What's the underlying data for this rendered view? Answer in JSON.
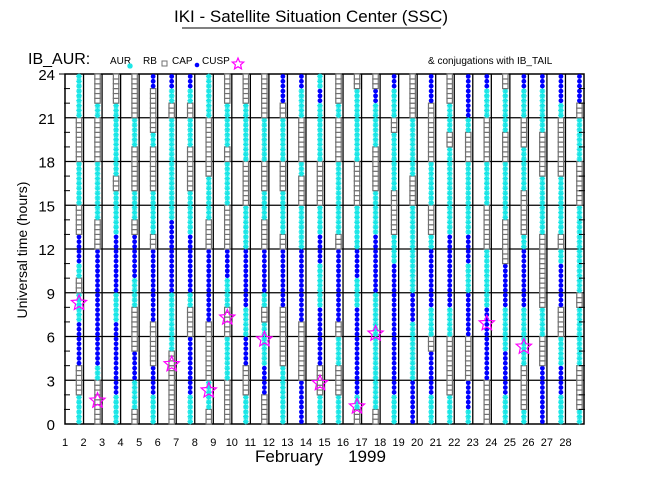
{
  "chart_data": {
    "type": "scatter",
    "title": "IKI - Satellite Situation Center (SSC)",
    "satellite_label": "IB_AUR:",
    "legend": [
      {
        "label": "AUR",
        "marker": "cyan-asterisk",
        "color": "#19e6e6"
      },
      {
        "label": "RB",
        "marker": "gray-square",
        "color": "#707070"
      },
      {
        "label": "CAP",
        "marker": "blue-dot",
        "color": "#0000ff"
      },
      {
        "label": "CUSP",
        "marker": "magenta-star",
        "color": "#ff00ff"
      }
    ],
    "conjugation_note": "& conjugations with IB_TAIL",
    "ylabel": "Universal time (hours)",
    "xlabel_month": "February",
    "xlabel_year": "1999",
    "ylim": [
      0,
      24
    ],
    "yticks": [
      "0",
      "3",
      "6",
      "9",
      "12",
      "15",
      "18",
      "21",
      "24"
    ],
    "xticks": [
      "1",
      "2",
      "3",
      "4",
      "5",
      "6",
      "7",
      "8",
      "9",
      "10",
      "11",
      "12",
      "13",
      "14",
      "15",
      "16",
      "17",
      "18",
      "19",
      "20",
      "21",
      "22",
      "23",
      "24",
      "25",
      "26",
      "27",
      "28"
    ],
    "hourly_region_by_day_legend": {
      "a": "AUR",
      "r": "RB",
      "c": "CAP"
    },
    "hourly_region_by_day": [
      "aarrcccaaraccrraaarrraaa",
      "rrraccccccccrraaaarrrarr",
      "aacccccaaccccaaaraaaaarr",
      "raaccrrraacccraarrraarrr",
      "aaccrrrcccccraaarrrarrrc",
      "rrrrraaaacccccaaaaaaarac",
      "aaccccrraccccaaarrraarac",
      "raarrrrcccccrraaarrrraaa",
      "rrraaarraaccrrraaaraaarr",
      "aarrccaaccccaaarrraaaarr",
      "rrccaaaracccrraarraaarrr",
      "aaaarrrrccccraaarraaarcc",
      "cccrrrrcccccaaarrarrraac",
      "aarrccccaaaccaarrraaaaca",
      "aarraarcccccraaaaarrrarr",
      "raccccccaaccaaarrraaaaar",
      "raaaaaaaaccccaaarrraaacr",
      "aacccccccccaarrraaaaraac",
      "cccaaaaccaaaaaarraaaarrr",
      "aacccraaccccarraaarrrrcc",
      "aarrrraacccccaaaaaaraarr",
      "accrrrcccaaccaaaaarraccc",
      "rrrcccccaaaarrraaarrraac",
      "aacccaaacccrrraaaarraaar",
      "arrraaaaccccarrraaarraac",
      "ccccrraarrrrraaaarrraaac",
      "aaccaarrcccaraaaarrrracc",
      "arrraaaaraaaaaarrraaarcc"
    ],
    "conjugations": [
      {
        "day": 1,
        "hour": 8.3
      },
      {
        "day": 2,
        "hour": 1.6
      },
      {
        "day": 6,
        "hour": 4.1
      },
      {
        "day": 8,
        "hour": 2.3
      },
      {
        "day": 9,
        "hour": 7.3
      },
      {
        "day": 11,
        "hour": 5.8
      },
      {
        "day": 14,
        "hour": 2.8
      },
      {
        "day": 16,
        "hour": 1.2
      },
      {
        "day": 17,
        "hour": 6.2
      },
      {
        "day": 23,
        "hour": 6.9
      },
      {
        "day": 25,
        "hour": 5.3
      }
    ]
  }
}
